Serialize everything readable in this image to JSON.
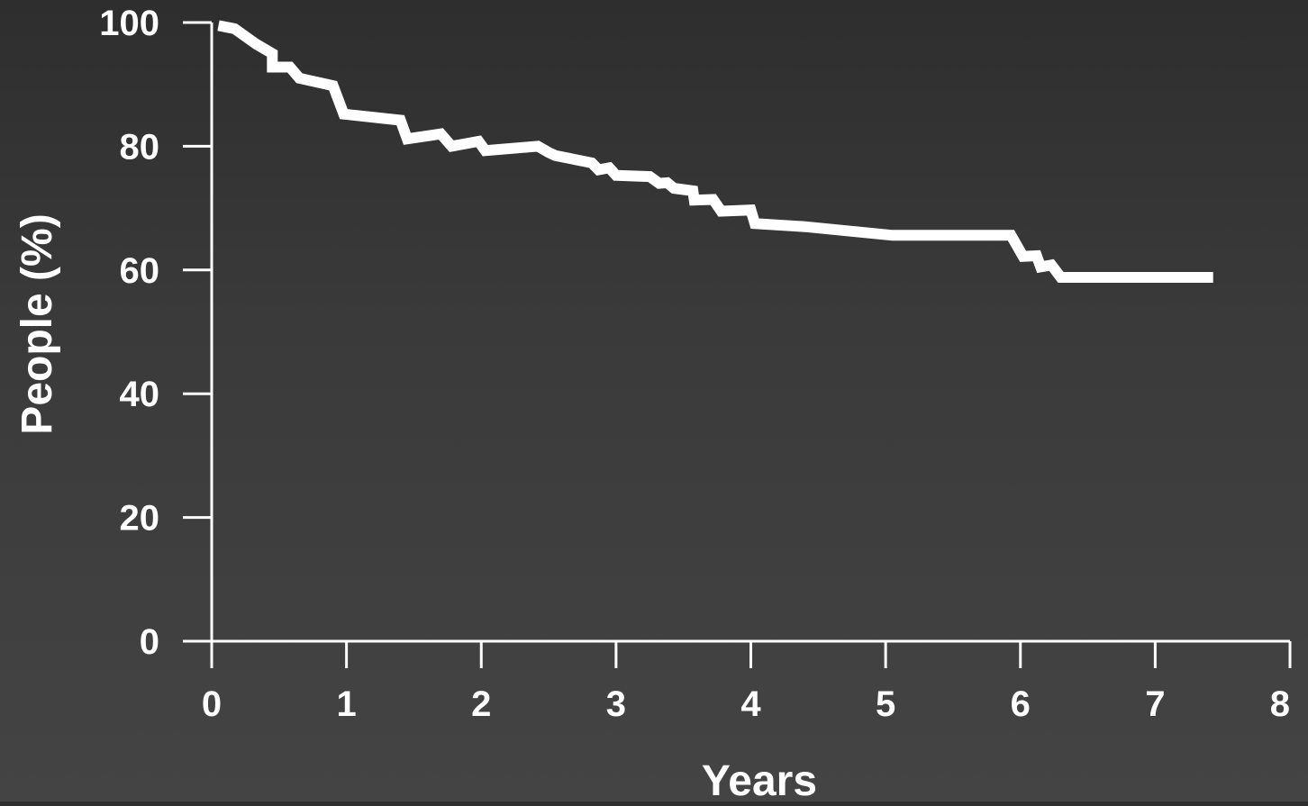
{
  "chart_data": {
    "type": "line",
    "title": "",
    "xlabel": "Years",
    "ylabel": "People (%)",
    "xlim": [
      0,
      8
    ],
    "ylim": [
      0,
      100
    ],
    "xticks": [
      0,
      1,
      2,
      3,
      4,
      5,
      6,
      7,
      8
    ],
    "yticks": [
      0,
      20,
      40,
      60,
      80,
      100
    ],
    "xtick_labels": [
      "0",
      "1",
      "2",
      "3",
      "4",
      "5",
      "6",
      "7",
      "8"
    ],
    "ytick_labels": [
      "0",
      "20",
      "40",
      "60",
      "80",
      "100"
    ],
    "grid": false,
    "legend": "none",
    "colors": {
      "line": "#ffffff",
      "axis": "#ffffff",
      "text": "#ffffff"
    },
    "series": [
      {
        "x": [
          0.05,
          0.17,
          0.33,
          0.45,
          0.45,
          0.58,
          0.65,
          0.9,
          0.98,
          1.4,
          1.45,
          1.7,
          1.78,
          1.98,
          2.03,
          2.42,
          2.5,
          2.55,
          2.82,
          2.87,
          2.95,
          3.0,
          3.25,
          3.32,
          3.38,
          3.43,
          3.57,
          3.58,
          3.72,
          3.78,
          4.0,
          4.03,
          4.4,
          5.05,
          5.93,
          6.02,
          6.12,
          6.15,
          6.23,
          6.3,
          7.43
        ],
        "y": [
          99.5,
          99,
          96.5,
          95,
          92.8,
          92.8,
          91,
          89.8,
          85.2,
          84.2,
          81.2,
          82,
          80,
          80.8,
          79.3,
          80,
          79,
          78.5,
          77.3,
          76.2,
          76.5,
          75.3,
          75.1,
          74,
          74.1,
          73.2,
          72.8,
          71.3,
          71.4,
          69.5,
          69.7,
          67.5,
          67,
          65.6,
          65.6,
          62.2,
          62.3,
          60.5,
          60.8,
          58.8,
          58.8
        ]
      }
    ]
  }
}
